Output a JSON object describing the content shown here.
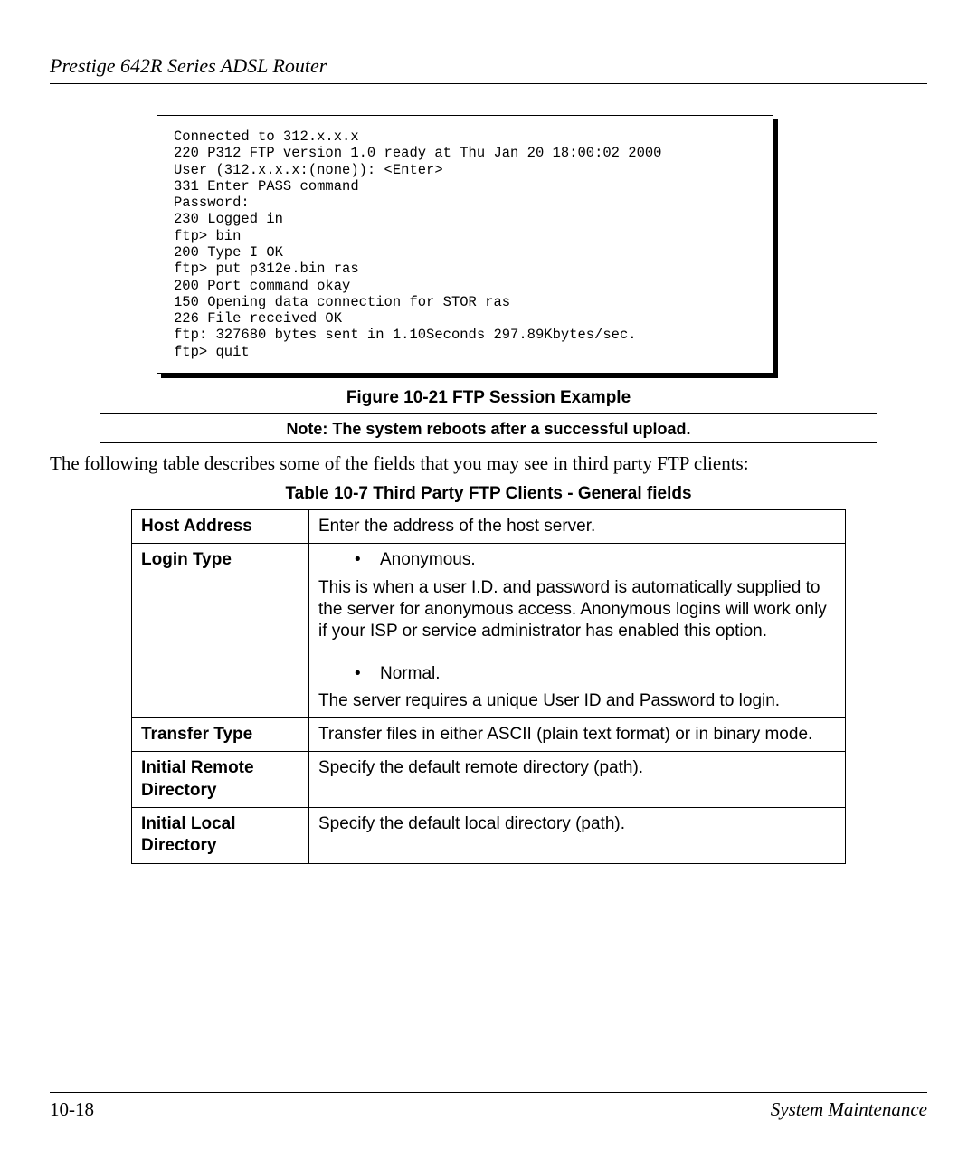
{
  "header": {
    "title": "Prestige 642R Series ADSL Router"
  },
  "code": {
    "lines": "Connected to 312.x.x.x\n220 P312 FTP version 1.0 ready at Thu Jan 20 18:00:02 2000\nUser (312.x.x.x:(none)): <Enter>\n331 Enter PASS command\nPassword:\n230 Logged in\nftp> bin\n200 Type I OK\nftp> put p312e.bin ras\n200 Port command okay\n150 Opening data connection for STOR ras\n226 File received OK\nftp: 327680 bytes sent in 1.10Seconds 297.89Kbytes/sec.\nftp> quit"
  },
  "figure": {
    "caption": "Figure 10-21    FTP Session Example"
  },
  "note": {
    "text": "Note: The system reboots after a successful upload."
  },
  "intro": {
    "text": "The following table describes some of the fields that you may see in third party FTP clients:"
  },
  "table": {
    "caption": "Table 10-7      Third Party FTP Clients - General fields",
    "rows": {
      "hostAddress": {
        "field": "Host Address",
        "desc": "Enter the address of the host server."
      },
      "loginType": {
        "field": "Login Type",
        "anonLabel": "Anonymous.",
        "anonDesc": "This is when a user I.D. and password is automatically supplied to the server for anonymous access.  Anonymous logins will work only if your ISP or service administrator has enabled this option.",
        "normalLabel": "Normal.",
        "normalDesc": "The server requires a unique User ID and Password to login."
      },
      "transferType": {
        "field": "Transfer Type",
        "desc": "Transfer files in either ASCII (plain text format) or in binary mode."
      },
      "initialRemote": {
        "field": "Initial Remote Directory",
        "desc": "Specify the default remote directory (path)."
      },
      "initialLocal": {
        "field": "Initial Local Directory",
        "desc": "Specify the default local directory (path)."
      }
    }
  },
  "footer": {
    "pageNum": "10-18",
    "section": "System Maintenance"
  }
}
